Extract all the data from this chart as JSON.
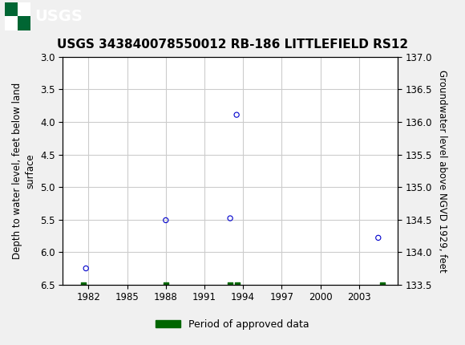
{
  "title": "USGS 343840078550012 RB-186 LITTLEFIELD RS12",
  "ylabel_left": "Depth to water level, feet below land\nsurface",
  "ylabel_right": "Groundwater level above NGVD 1929, feet",
  "ylim_left": [
    3.0,
    6.5
  ],
  "ylim_right": [
    133.5,
    137.0
  ],
  "xlim": [
    1980,
    2006
  ],
  "xticks": [
    1982,
    1985,
    1988,
    1991,
    1994,
    1997,
    2000,
    2003
  ],
  "yticks_left": [
    3.0,
    3.5,
    4.0,
    4.5,
    5.0,
    5.5,
    6.0,
    6.5
  ],
  "yticks_right": [
    133.5,
    134.0,
    134.5,
    135.0,
    135.5,
    136.0,
    136.5,
    137.0
  ],
  "data_x": [
    1981.8,
    1988.0,
    1993.0,
    1993.5,
    2004.5
  ],
  "data_y": [
    6.25,
    5.51,
    5.48,
    3.89,
    5.78
  ],
  "approved_data_x": [
    1981.6,
    1988.0,
    1993.0,
    1993.55,
    2004.8
  ],
  "approved_data_y": [
    6.5,
    6.5,
    6.5,
    6.5,
    6.5
  ],
  "point_color": "#0000cc",
  "approved_color": "#006600",
  "background_color": "#f0f0f0",
  "header_color": "#006633",
  "header_text_color": "#ffffff",
  "grid_color": "#cccccc",
  "title_fontsize": 11,
  "axis_label_fontsize": 8.5,
  "tick_fontsize": 8.5,
  "legend_fontsize": 9,
  "logo_text": "USGS"
}
